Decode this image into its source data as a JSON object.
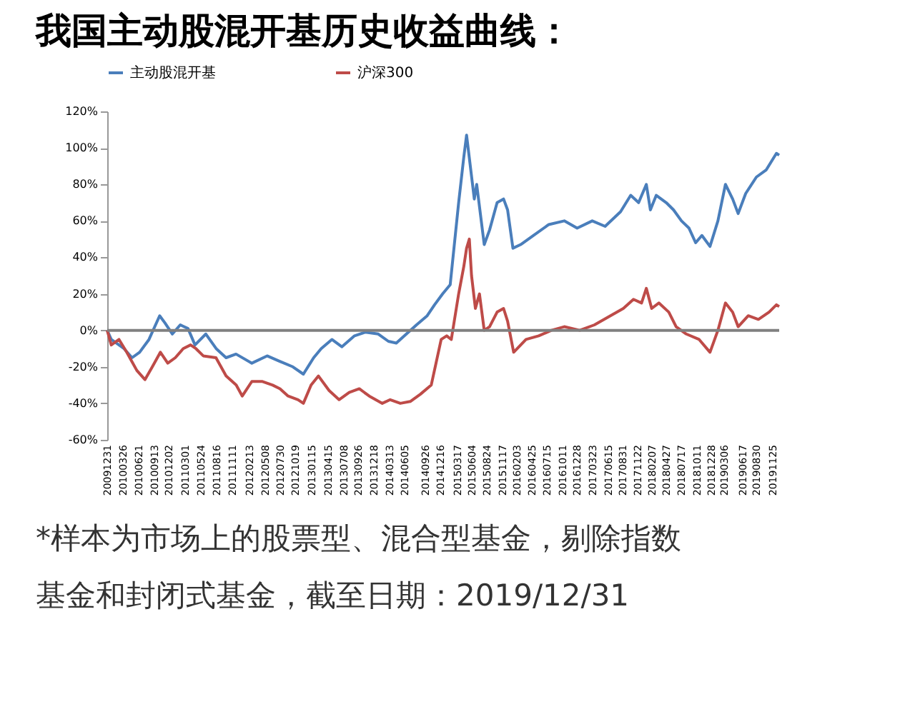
{
  "chart_data": {
    "type": "line",
    "title": "我国主动股混开基历史收益曲线：",
    "annotations": [
      "*样本为市场上的股票型、混合型基金，剔除指数基金和封闭式基金，截至日期：2019/12/31"
    ],
    "legend": "top",
    "ref_lines": [
      {
        "axis": "y",
        "value": 0,
        "color": "#808080"
      }
    ],
    "grid": false,
    "marker": "none",
    "line_style": "solid",
    "ylim": [
      -60,
      120
    ],
    "yticks": [
      {
        "value": -60,
        "label": "-60%"
      },
      {
        "value": -40,
        "label": "-40%"
      },
      {
        "value": -20,
        "label": "-20%"
      },
      {
        "value": 0,
        "label": "0%"
      },
      {
        "value": 20,
        "label": "20%"
      },
      {
        "value": 40,
        "label": "40%"
      },
      {
        "value": 60,
        "label": "60%"
      },
      {
        "value": 80,
        "label": "80%"
      },
      {
        "value": 100,
        "label": "100%"
      },
      {
        "value": 120,
        "label": "120%"
      }
    ],
    "xlim": [
      "2009-12-31",
      "2019-12-31"
    ],
    "xticks": [
      {
        "value": "2009-12-31",
        "label": "20091231"
      },
      {
        "value": "2010-03-26",
        "label": "20100326"
      },
      {
        "value": "2010-06-21",
        "label": "20100621"
      },
      {
        "value": "2010-09-13",
        "label": "20100913"
      },
      {
        "value": "2010-12-02",
        "label": "20101202"
      },
      {
        "value": "2011-03-01",
        "label": "20110301"
      },
      {
        "value": "2011-05-24",
        "label": "20110524"
      },
      {
        "value": "2011-08-16",
        "label": "20110816"
      },
      {
        "value": "2011-11-11",
        "label": "20111111"
      },
      {
        "value": "2012-02-13",
        "label": "20120213"
      },
      {
        "value": "2012-05-08",
        "label": "20120508"
      },
      {
        "value": "2012-07-30",
        "label": "20120730"
      },
      {
        "value": "2012-10-19",
        "label": "20121019"
      },
      {
        "value": "2013-01-15",
        "label": "20130115"
      },
      {
        "value": "2013-04-15",
        "label": "20130415"
      },
      {
        "value": "2013-07-08",
        "label": "20130708"
      },
      {
        "value": "2013-09-26",
        "label": "20130926"
      },
      {
        "value": "2013-12-18",
        "label": "20131218"
      },
      {
        "value": "2014-03-13",
        "label": "20140313"
      },
      {
        "value": "2014-06-05",
        "label": "20140605"
      },
      {
        "value": "2014-09-26",
        "label": "20140926"
      },
      {
        "value": "2014-12-16",
        "label": "20141216"
      },
      {
        "value": "2015-03-17",
        "label": "20150317"
      },
      {
        "value": "2015-06-04",
        "label": "20150604"
      },
      {
        "value": "2015-08-24",
        "label": "20150824"
      },
      {
        "value": "2015-11-17",
        "label": "20151117"
      },
      {
        "value": "2016-02-03",
        "label": "20160203"
      },
      {
        "value": "2016-04-25",
        "label": "20160425"
      },
      {
        "value": "2016-07-15",
        "label": "20160715"
      },
      {
        "value": "2016-10-11",
        "label": "20161011"
      },
      {
        "value": "2016-12-28",
        "label": "20161228"
      },
      {
        "value": "2017-03-23",
        "label": "20170323"
      },
      {
        "value": "2017-06-15",
        "label": "20170615"
      },
      {
        "value": "2017-08-31",
        "label": "20170831"
      },
      {
        "value": "2017-11-22",
        "label": "20171122"
      },
      {
        "value": "2018-02-07",
        "label": "20180207"
      },
      {
        "value": "2018-04-27",
        "label": "20180427"
      },
      {
        "value": "2018-07-17",
        "label": "20180717"
      },
      {
        "value": "2018-10-11",
        "label": "20181011"
      },
      {
        "value": "2018-12-28",
        "label": "20181228"
      },
      {
        "value": "2019-03-06",
        "label": "20190306"
      },
      {
        "value": "2019-06-17",
        "label": "20190617"
      },
      {
        "value": "2019-08-30",
        "label": "20190830"
      },
      {
        "value": "2019-11-25",
        "label": "20191125"
      }
    ],
    "series": [
      {
        "name": "主动股混开基",
        "color": "#4a7ebb",
        "x": [
          "2009-12-31",
          "2010-01-22",
          "2010-04-01",
          "2010-05-15",
          "2010-06-25",
          "2010-08-15",
          "2010-10-12",
          "2010-11-10",
          "2010-12-20",
          "2011-02-01",
          "2011-03-15",
          "2011-04-22",
          "2011-06-20",
          "2011-08-15",
          "2011-10-08",
          "2011-12-01",
          "2012-02-25",
          "2012-05-18",
          "2012-07-26",
          "2012-10-05",
          "2012-12-01",
          "2013-01-26",
          "2013-03-08",
          "2013-05-05",
          "2013-06-28",
          "2013-09-05",
          "2013-11-03",
          "2014-01-12",
          "2014-03-08",
          "2014-04-20",
          "2014-06-14",
          "2014-08-08",
          "2014-10-05",
          "2014-11-14",
          "2014-12-28",
          "2015-02-07",
          "2015-03-25",
          "2015-04-22",
          "2015-05-07",
          "2015-06-18",
          "2015-07-01",
          "2015-08-11",
          "2015-09-09",
          "2015-10-20",
          "2015-11-24",
          "2015-12-16",
          "2016-01-14",
          "2016-02-25",
          "2016-05-04",
          "2016-07-27",
          "2016-10-19",
          "2016-12-28",
          "2017-03-20",
          "2017-05-29",
          "2017-08-21",
          "2017-10-15",
          "2017-11-27",
          "2018-01-08",
          "2018-01-30",
          "2018-03-03",
          "2018-04-26",
          "2018-06-05",
          "2018-07-18",
          "2018-08-28",
          "2018-10-03",
          "2018-11-06",
          "2018-12-20",
          "2019-02-01",
          "2019-03-14",
          "2019-04-22",
          "2019-05-22",
          "2019-07-02",
          "2019-08-29",
          "2019-10-22",
          "2019-12-16",
          "2019-12-31"
        ],
        "values": [
          0,
          -5,
          -10,
          -15,
          -12,
          -5,
          8,
          4,
          -2,
          3,
          1,
          -8,
          -2,
          -10,
          -15,
          -13,
          -18,
          -14,
          -17,
          -20,
          -24,
          -15,
          -10,
          -5,
          -9,
          -3,
          -1,
          -2,
          -6,
          -7,
          -2,
          3,
          8,
          14,
          20,
          25,
          70,
          95,
          107,
          72,
          80,
          47,
          55,
          70,
          72,
          66,
          45,
          47,
          52,
          58,
          60,
          56,
          60,
          57,
          65,
          74,
          70,
          80,
          66,
          74,
          70,
          66,
          60,
          56,
          48,
          52,
          46,
          60,
          80,
          72,
          64,
          75,
          84,
          88,
          97,
          96
        ]
      },
      {
        "name": "沪深300",
        "color": "#be4b48",
        "x": [
          "2009-12-31",
          "2010-01-22",
          "2010-03-05",
          "2010-04-16",
          "2010-06-10",
          "2010-07-24",
          "2010-09-02",
          "2010-10-16",
          "2010-11-25",
          "2011-01-05",
          "2011-02-17",
          "2011-03-29",
          "2011-04-27",
          "2011-06-06",
          "2011-08-14",
          "2011-10-08",
          "2011-12-02",
          "2012-01-04",
          "2012-02-25",
          "2012-04-20",
          "2012-06-17",
          "2012-07-27",
          "2012-09-09",
          "2012-11-02",
          "2012-12-01",
          "2013-01-12",
          "2013-02-21",
          "2013-04-20",
          "2013-06-13",
          "2013-08-07",
          "2013-10-01",
          "2013-11-24",
          "2014-02-03",
          "2014-03-18",
          "2014-05-12",
          "2014-07-05",
          "2014-08-29",
          "2014-10-27",
          "2014-12-20",
          "2015-01-19",
          "2015-02-13",
          "2015-03-25",
          "2015-04-22",
          "2015-05-07",
          "2015-05-22",
          "2015-06-03",
          "2015-06-24",
          "2015-07-16",
          "2015-08-11",
          "2015-09-09",
          "2015-10-20",
          "2015-11-24",
          "2015-12-16",
          "2016-01-18",
          "2016-03-25",
          "2016-06-02",
          "2016-08-10",
          "2016-10-19",
          "2017-01-11",
          "2017-04-01",
          "2017-06-27",
          "2017-09-05",
          "2017-10-30",
          "2017-12-13",
          "2018-01-08",
          "2018-02-06",
          "2018-03-17",
          "2018-05-10",
          "2018-06-19",
          "2018-08-13",
          "2018-10-22",
          "2018-12-20",
          "2019-02-01",
          "2019-03-14",
          "2019-04-22",
          "2019-05-22",
          "2019-07-16",
          "2019-09-09",
          "2019-11-06",
          "2019-12-16",
          "2019-12-31"
        ],
        "values": [
          0,
          -8,
          -5,
          -12,
          -22,
          -27,
          -20,
          -12,
          -18,
          -15,
          -10,
          -8,
          -10,
          -14,
          -15,
          -25,
          -30,
          -36,
          -28,
          -28,
          -30,
          -32,
          -36,
          -38,
          -40,
          -30,
          -25,
          -33,
          -38,
          -34,
          -32,
          -36,
          -40,
          -38,
          -40,
          -39,
          -35,
          -30,
          -5,
          -3,
          -5,
          20,
          35,
          45,
          50,
          30,
          12,
          20,
          0,
          2,
          10,
          12,
          5,
          -12,
          -5,
          -3,
          0,
          2,
          0,
          3,
          8,
          12,
          17,
          15,
          23,
          12,
          15,
          10,
          2,
          -2,
          -5,
          -12,
          0,
          15,
          10,
          2,
          8,
          6,
          10,
          14,
          13
        ]
      }
    ]
  }
}
